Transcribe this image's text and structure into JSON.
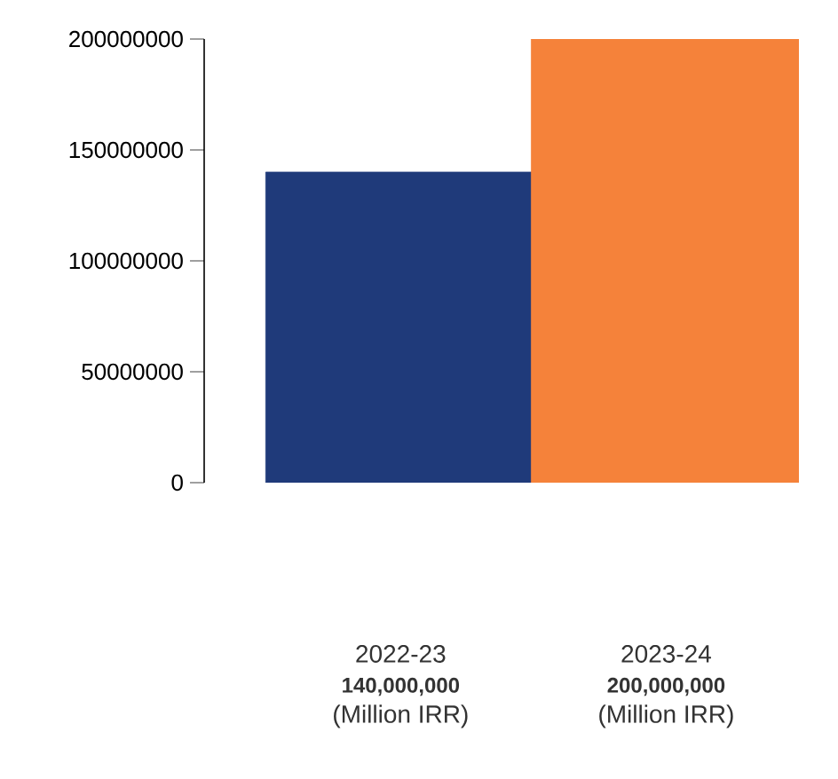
{
  "chart_data": {
    "type": "bar",
    "categories": [
      "2022-23",
      "2023-24"
    ],
    "values": [
      140000000,
      200000000
    ],
    "colors": [
      "#1f3a7a",
      "#f5823a"
    ],
    "value_labels": [
      "140,000,000",
      "200,000,000"
    ],
    "annotations": [
      "(Million IRR)",
      "(Million IRR)"
    ],
    "ylim": [
      0,
      200000000
    ],
    "yticks": [
      0,
      50000000,
      100000000,
      150000000,
      200000000
    ]
  }
}
